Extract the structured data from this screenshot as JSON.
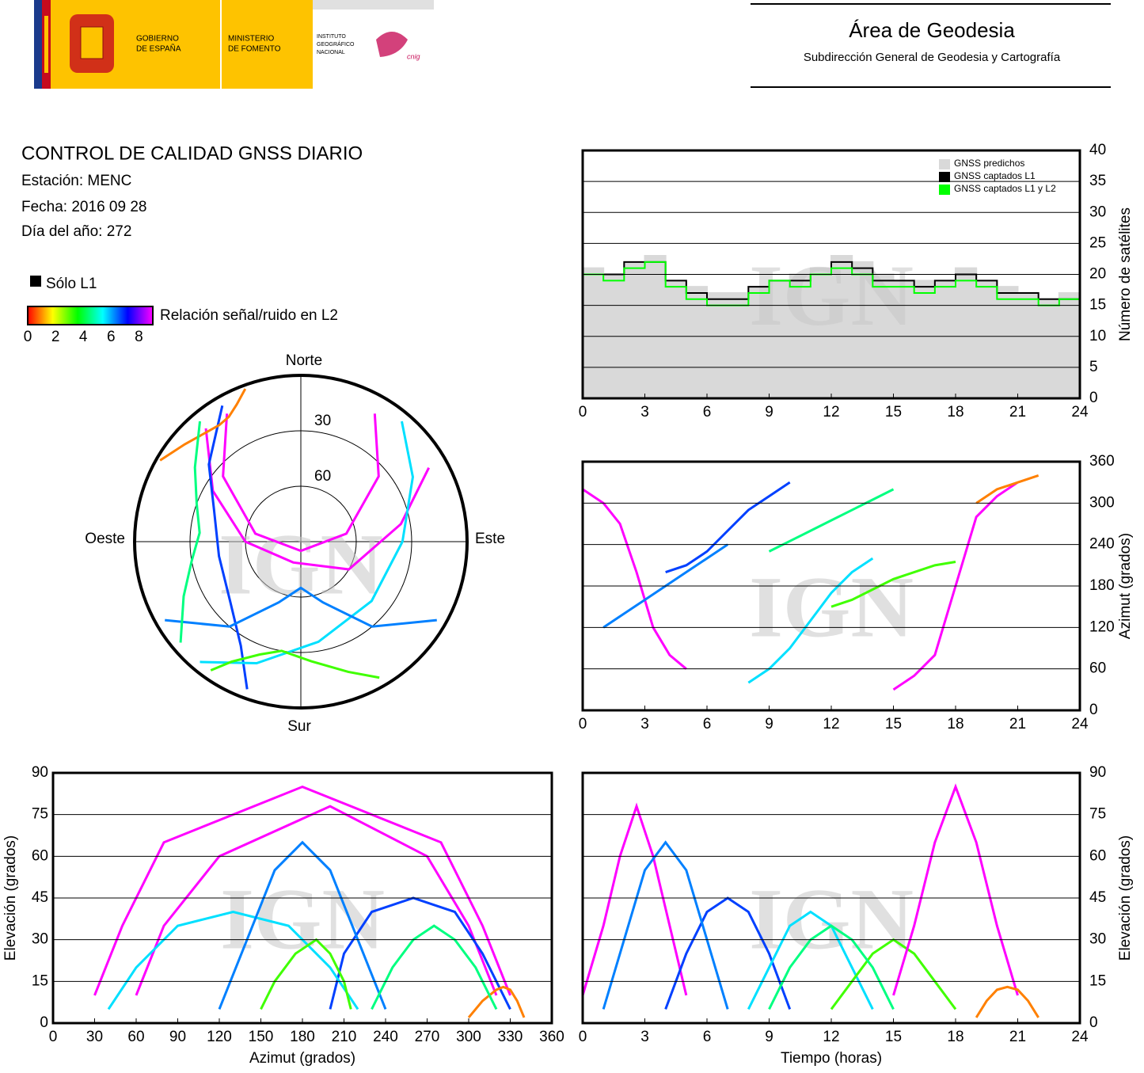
{
  "header": {
    "logos": {
      "government": [
        "GOBIERNO",
        "DE ESPAÑA"
      ],
      "ministry": [
        "MINISTERIO",
        "DE FOMENTO"
      ],
      "institute": [
        "INSTITUTO",
        "GEOGRÁFICO",
        "NACIONAL"
      ],
      "cnig": "cnig"
    },
    "title": "Área de Geodesia",
    "subtitle": "Subdirección General de Geodesia y Cartografía"
  },
  "report": {
    "title": "CONTROL DE CALIDAD GNSS DIARIO",
    "lines": [
      "Estación: MENC",
      "Fecha: 2016 09 28",
      "Día del año: 272"
    ]
  },
  "legend": {
    "l1_only": "Sólo L1",
    "colorbar_label": "Relación señal/ruido en L2",
    "colorbar_lim": [
      0,
      9
    ],
    "colorbar_ticks": [
      0,
      2,
      4,
      6,
      8
    ],
    "colorbar_colors": [
      "#ff0000",
      "#ffff00",
      "#00ff00",
      "#00ffff",
      "#0000ff",
      "#ff00ff"
    ]
  },
  "watermark": "IGN",
  "chart_data": [
    {
      "type": "polar",
      "directions": [
        "Norte",
        "Este",
        "Sur",
        "Oeste"
      ],
      "rlim": [
        90,
        0
      ],
      "rticks": [
        30,
        60
      ],
      "series": [
        {
          "color": "#ff00ff",
          "azimuth": [
            320,
            300,
            270,
            200,
            120,
            80,
            60
          ],
          "elevation": [
            10,
            35,
            60,
            78,
            60,
            35,
            10
          ]
        },
        {
          "color": "#0040ff",
          "azimuth": [
            200,
            210,
            230,
            260,
            290,
            310,
            330
          ],
          "elevation": [
            5,
            25,
            40,
            45,
            40,
            25,
            5
          ]
        },
        {
          "color": "#00e0ff",
          "azimuth": [
            40,
            60,
            90,
            130,
            170,
            200,
            220
          ],
          "elevation": [
            5,
            20,
            35,
            40,
            35,
            20,
            5
          ]
        },
        {
          "color": "#40ff00",
          "azimuth": [
            150,
            160,
            175,
            190,
            200,
            210,
            215
          ],
          "elevation": [
            5,
            15,
            25,
            30,
            25,
            15,
            5
          ]
        },
        {
          "color": "#ff00ff",
          "azimuth": [
            30,
            50,
            80,
            180,
            280,
            310,
            330
          ],
          "elevation": [
            10,
            35,
            65,
            85,
            65,
            35,
            10
          ]
        },
        {
          "color": "#ff8000",
          "azimuth": [
            300,
            310,
            320,
            325,
            330,
            335,
            340
          ],
          "elevation": [
            2,
            8,
            12,
            13,
            12,
            8,
            2
          ]
        },
        {
          "color": "#0080ff",
          "azimuth": [
            120,
            140,
            160,
            180,
            200,
            220,
            240
          ],
          "elevation": [
            5,
            30,
            55,
            65,
            55,
            30,
            5
          ]
        },
        {
          "color": "#00ff80",
          "azimuth": [
            230,
            245,
            260,
            275,
            290,
            305,
            320
          ],
          "elevation": [
            5,
            20,
            30,
            35,
            30,
            20,
            5
          ]
        }
      ]
    },
    {
      "type": "step",
      "ylabel": "Número de satélites",
      "yaxis_side": "right",
      "grid": true,
      "legend": "top-right",
      "xlim": [
        0,
        24
      ],
      "xticks": [
        0,
        3,
        6,
        9,
        12,
        15,
        18,
        21,
        24
      ],
      "ylim": [
        0,
        40
      ],
      "yticks": [
        0,
        5,
        10,
        15,
        20,
        25,
        30,
        35,
        40
      ],
      "x": [
        0,
        1,
        2,
        3,
        4,
        5,
        6,
        7,
        8,
        9,
        10,
        11,
        12,
        13,
        14,
        15,
        16,
        17,
        18,
        19,
        20,
        21,
        22,
        23,
        24
      ],
      "series": [
        {
          "name": "GNSS predichos",
          "color": "#d9d9d9",
          "area": true,
          "values": [
            21,
            20,
            22,
            23,
            19,
            18,
            17,
            17,
            18,
            19,
            20,
            21,
            23,
            22,
            20,
            19,
            19,
            19,
            21,
            19,
            18,
            17,
            16,
            17,
            21
          ]
        },
        {
          "name": "GNSS captados L1",
          "color": "#000000",
          "values": [
            20,
            20,
            22,
            22,
            19,
            17,
            16,
            16,
            18,
            19,
            19,
            20,
            22,
            21,
            19,
            19,
            18,
            19,
            20,
            19,
            17,
            17,
            16,
            16,
            20
          ]
        },
        {
          "name": "GNSS captados L1 y L2",
          "color": "#00ff00",
          "values": [
            20,
            19,
            21,
            22,
            18,
            16,
            15,
            15,
            17,
            19,
            18,
            20,
            21,
            20,
            18,
            18,
            17,
            18,
            19,
            18,
            16,
            16,
            15,
            16,
            19
          ]
        }
      ]
    },
    {
      "type": "line",
      "ylabel": "Azimut (grados)",
      "yaxis_side": "right",
      "grid": true,
      "xlim": [
        0,
        24
      ],
      "xticks": [
        0,
        3,
        6,
        9,
        12,
        15,
        18,
        21,
        24
      ],
      "ylim": [
        0,
        360
      ],
      "yticks": [
        0,
        60,
        120,
        180,
        240,
        300,
        360
      ],
      "series": [
        {
          "color": "#ff00ff",
          "x": [
            0,
            1,
            1.8,
            2.6,
            3.4,
            4.2,
            5
          ],
          "values": [
            320,
            300,
            270,
            200,
            120,
            80,
            60
          ]
        },
        {
          "color": "#0040ff",
          "x": [
            4,
            5,
            6,
            7,
            8,
            9,
            10
          ],
          "values": [
            200,
            210,
            230,
            260,
            290,
            310,
            330
          ]
        },
        {
          "color": "#00e0ff",
          "x": [
            8,
            9,
            10,
            11,
            12,
            13,
            14
          ],
          "values": [
            40,
            60,
            90,
            130,
            170,
            200,
            220
          ]
        },
        {
          "color": "#40ff00",
          "x": [
            12,
            13,
            14,
            15,
            16,
            17,
            18
          ],
          "values": [
            150,
            160,
            175,
            190,
            200,
            210,
            215
          ]
        },
        {
          "color": "#ff00ff",
          "x": [
            15,
            16,
            17,
            18,
            19,
            20,
            21
          ],
          "values": [
            30,
            50,
            80,
            180,
            280,
            310,
            330
          ]
        },
        {
          "color": "#ff8000",
          "x": [
            19,
            19.5,
            20,
            20.5,
            21,
            21.5,
            22
          ],
          "values": [
            300,
            310,
            320,
            325,
            330,
            335,
            340
          ]
        },
        {
          "color": "#0080ff",
          "x": [
            1,
            2,
            3,
            4,
            5,
            6,
            7
          ],
          "values": [
            120,
            140,
            160,
            180,
            200,
            220,
            240
          ]
        },
        {
          "color": "#00ff80",
          "x": [
            9,
            10,
            11,
            12,
            13,
            14,
            15
          ],
          "values": [
            230,
            245,
            260,
            275,
            290,
            305,
            320
          ]
        }
      ]
    },
    {
      "type": "line",
      "xlabel": "Azimut (grados)",
      "ylabel": "Elevación (grados)",
      "yaxis_side": "left",
      "grid": true,
      "xlim": [
        0,
        360
      ],
      "xticks": [
        0,
        30,
        60,
        90,
        120,
        150,
        180,
        210,
        240,
        270,
        300,
        330,
        360
      ],
      "ylim": [
        0,
        90
      ],
      "yticks": [
        0,
        15,
        30,
        45,
        60,
        75,
        90
      ],
      "series": [
        {
          "color": "#ff00ff",
          "x": [
            320,
            300,
            270,
            200,
            120,
            80,
            60
          ],
          "values": [
            10,
            35,
            60,
            78,
            60,
            35,
            10
          ]
        },
        {
          "color": "#0040ff",
          "x": [
            200,
            210,
            230,
            260,
            290,
            310,
            330
          ],
          "values": [
            5,
            25,
            40,
            45,
            40,
            25,
            5
          ]
        },
        {
          "color": "#00e0ff",
          "x": [
            40,
            60,
            90,
            130,
            170,
            200,
            220
          ],
          "values": [
            5,
            20,
            35,
            40,
            35,
            20,
            5
          ]
        },
        {
          "color": "#40ff00",
          "x": [
            150,
            160,
            175,
            190,
            200,
            210,
            215
          ],
          "values": [
            5,
            15,
            25,
            30,
            25,
            15,
            5
          ]
        },
        {
          "color": "#ff00ff",
          "x": [
            30,
            50,
            80,
            180,
            280,
            310,
            330
          ],
          "values": [
            10,
            35,
            65,
            85,
            65,
            35,
            10
          ]
        },
        {
          "color": "#ff8000",
          "x": [
            300,
            310,
            320,
            325,
            330,
            335,
            340
          ],
          "values": [
            2,
            8,
            12,
            13,
            12,
            8,
            2
          ]
        },
        {
          "color": "#0080ff",
          "x": [
            120,
            140,
            160,
            180,
            200,
            220,
            240
          ],
          "values": [
            5,
            30,
            55,
            65,
            55,
            30,
            5
          ]
        },
        {
          "color": "#00ff80",
          "x": [
            230,
            245,
            260,
            275,
            290,
            305,
            320
          ],
          "values": [
            5,
            20,
            30,
            35,
            30,
            20,
            5
          ]
        }
      ]
    },
    {
      "type": "line",
      "xlabel": "Tiempo (horas)",
      "ylabel": "Elevación (grados)",
      "yaxis_side": "right",
      "grid": true,
      "xlim": [
        0,
        24
      ],
      "xticks": [
        0,
        3,
        6,
        9,
        12,
        15,
        18,
        21,
        24
      ],
      "ylim": [
        0,
        90
      ],
      "yticks": [
        0,
        15,
        30,
        45,
        60,
        75,
        90
      ],
      "series": [
        {
          "color": "#ff00ff",
          "x": [
            0,
            1,
            1.8,
            2.6,
            3.4,
            4.2,
            5
          ],
          "values": [
            10,
            35,
            60,
            78,
            60,
            35,
            10
          ]
        },
        {
          "color": "#0040ff",
          "x": [
            4,
            5,
            6,
            7,
            8,
            9,
            10
          ],
          "values": [
            5,
            25,
            40,
            45,
            40,
            25,
            5
          ]
        },
        {
          "color": "#00e0ff",
          "x": [
            8,
            9,
            10,
            11,
            12,
            13,
            14
          ],
          "values": [
            5,
            20,
            35,
            40,
            35,
            20,
            5
          ]
        },
        {
          "color": "#40ff00",
          "x": [
            12,
            13,
            14,
            15,
            16,
            17,
            18
          ],
          "values": [
            5,
            15,
            25,
            30,
            25,
            15,
            5
          ]
        },
        {
          "color": "#ff00ff",
          "x": [
            15,
            16,
            17,
            18,
            19,
            20,
            21
          ],
          "values": [
            10,
            35,
            65,
            85,
            65,
            35,
            10
          ]
        },
        {
          "color": "#ff8000",
          "x": [
            19,
            19.5,
            20,
            20.5,
            21,
            21.5,
            22
          ],
          "values": [
            2,
            8,
            12,
            13,
            12,
            8,
            2
          ]
        },
        {
          "color": "#0080ff",
          "x": [
            1,
            2,
            3,
            4,
            5,
            6,
            7
          ],
          "values": [
            5,
            30,
            55,
            65,
            55,
            30,
            5
          ]
        },
        {
          "color": "#00ff80",
          "x": [
            9,
            10,
            11,
            12,
            13,
            14,
            15
          ],
          "values": [
            5,
            20,
            30,
            35,
            30,
            20,
            5
          ]
        }
      ]
    }
  ]
}
